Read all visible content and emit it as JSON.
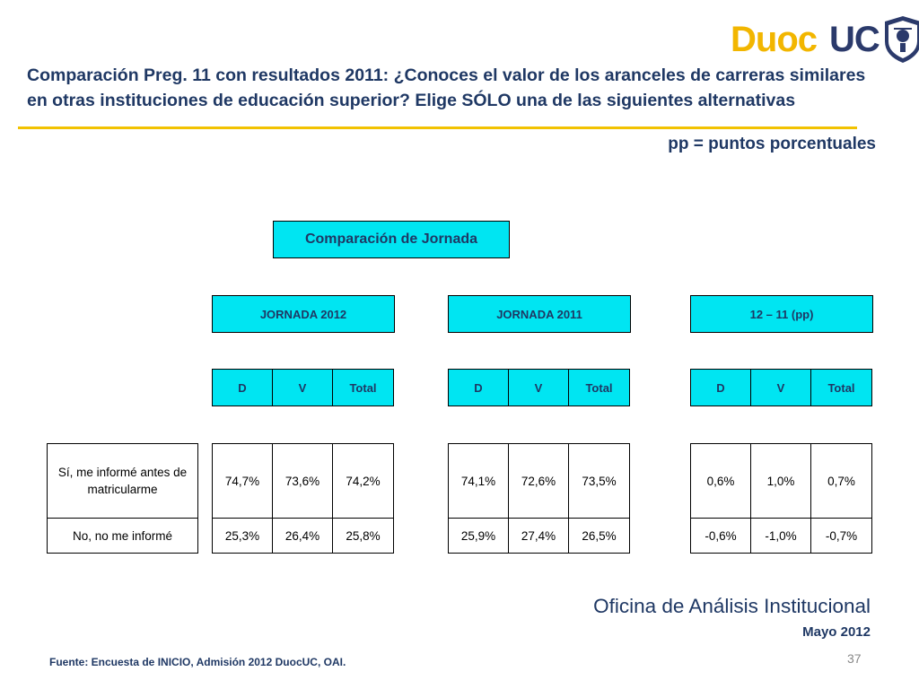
{
  "title": {
    "line1": "Comparación Preg. 11 con resultados 2011: ¿Conoces el valor de los aranceles de carreras similares",
    "line2": "en otras instituciones de educación superior? Elige SÓLO una de las siguientes alternativas"
  },
  "logo": {
    "text_left": "Duoc",
    "text_right": "UC"
  },
  "note": "pp = puntos porcentuales",
  "table": {
    "header": "Comparación de Jornada",
    "groups": [
      {
        "label": "JORNADA 2012",
        "cols": [
          "D",
          "V",
          "Total"
        ]
      },
      {
        "label": "JORNADA 2011",
        "cols": [
          "D",
          "V",
          "Total"
        ]
      },
      {
        "label": "12 – 11 (pp)",
        "cols": [
          "D",
          "V",
          "Total"
        ]
      }
    ],
    "rows": [
      {
        "label": "Sí, me informé antes de matricularme",
        "g2012": [
          "74,7%",
          "73,6%",
          "74,2%"
        ],
        "g2011": [
          "74,1%",
          "72,6%",
          "73,5%"
        ],
        "diff": [
          "0,6%",
          "1,0%",
          "0,7%"
        ]
      },
      {
        "label": "No, no me informé",
        "g2012": [
          "25,3%",
          "26,4%",
          "25,8%"
        ],
        "g2011": [
          "25,9%",
          "27,4%",
          "26,5%"
        ],
        "diff": [
          "-0,6%",
          "-1,0%",
          "-0,7%"
        ]
      }
    ]
  },
  "footer": {
    "office": "Oficina de Análisis Institucional",
    "date": "Mayo 2012",
    "source": "Fuente: Encuesta de INICIO, Admisión 2012 DuocUC, OAI.",
    "page": "37"
  },
  "colors": {
    "accent_cyan": "#00e5f2",
    "title_navy": "#1f3864",
    "rule_gold": "#f2c200",
    "logo_gold": "#f2b600"
  }
}
